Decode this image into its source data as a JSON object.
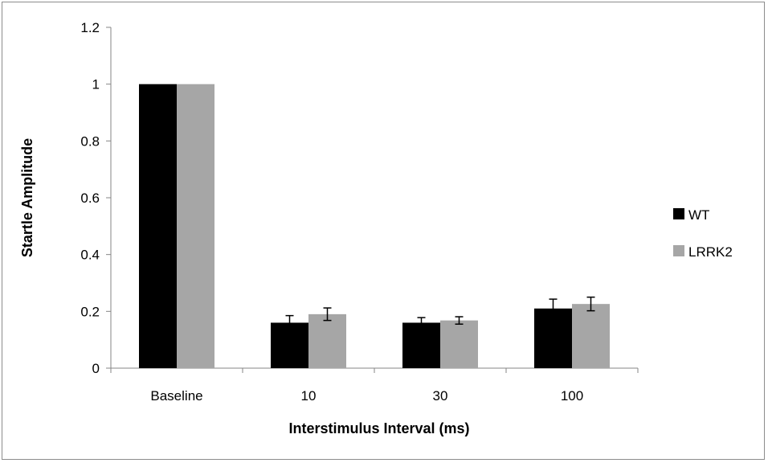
{
  "chart_data": {
    "type": "bar",
    "title": "",
    "xlabel": "Interstimulus Interval (ms)",
    "ylabel": "Startle Amplitude",
    "categories": [
      "Baseline",
      "10",
      "30",
      "100"
    ],
    "series": [
      {
        "name": "WT",
        "color": "#000000",
        "values": [
          1.0,
          0.16,
          0.16,
          0.21
        ],
        "errors": [
          0,
          0.025,
          0.018,
          0.033
        ]
      },
      {
        "name": "LRRK2",
        "color": "#a6a6a6",
        "values": [
          1.0,
          0.19,
          0.168,
          0.226
        ],
        "errors": [
          0,
          0.022,
          0.013,
          0.024
        ]
      }
    ],
    "ylim": [
      0,
      1.2
    ],
    "yticks": [
      0,
      0.2,
      0.4,
      0.6,
      0.8,
      1,
      1.2
    ],
    "ytick_labels": [
      "0",
      "0.2",
      "0.4",
      "0.6",
      "0.8",
      "1",
      "1.2"
    ],
    "grid": false,
    "legend_position": "right"
  }
}
